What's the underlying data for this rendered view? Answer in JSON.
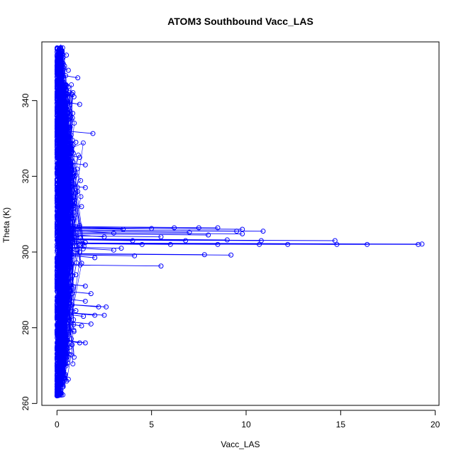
{
  "chart_data": {
    "type": "scatter",
    "title": "ATOM3 Southbound Vacc_LAS",
    "xlabel": "Vacc_LAS",
    "ylabel": "Theta (K)",
    "xlim": [
      -0.8,
      20.2
    ],
    "ylim": [
      259.5,
      355.5
    ],
    "x_ticks": [
      0,
      5,
      10,
      15,
      20
    ],
    "y_ticks": [
      260,
      280,
      300,
      320,
      340
    ],
    "grid": false,
    "legend": "none",
    "marker": "open-circle",
    "line": true,
    "color": "#0000ff",
    "bulk": {
      "note_values": "dense column of points near Vacc_LAS = 0 to 1.5",
      "x_range": [
        0,
        1.5
      ],
      "y_range": [
        262,
        354
      ]
    },
    "series": [
      {
        "points": [
          [
            0.0,
            262.0
          ],
          [
            0.05,
            263.2
          ],
          [
            0.1,
            265.0
          ],
          [
            0.2,
            266.5
          ],
          [
            0.4,
            266.6
          ],
          [
            0.6,
            266.4
          ],
          [
            0.1,
            268.5
          ],
          [
            0.3,
            270.0
          ],
          [
            0.5,
            272.0
          ],
          [
            0.2,
            274.0
          ],
          [
            0.8,
            275.5
          ],
          [
            1.2,
            276.0
          ],
          [
            1.5,
            276.0
          ],
          [
            0.4,
            277.5
          ],
          [
            0.9,
            279.0
          ],
          [
            1.3,
            280.5
          ],
          [
            1.8,
            281.0
          ],
          [
            0.6,
            282.0
          ],
          [
            1.4,
            283.0
          ],
          [
            2.0,
            283.3
          ],
          [
            2.5,
            283.3
          ],
          [
            0.3,
            284.0
          ],
          [
            1.0,
            284.5
          ],
          [
            2.2,
            285.5
          ],
          [
            2.6,
            285.5
          ],
          [
            0.8,
            286.0
          ],
          [
            1.5,
            287.0
          ],
          [
            0.5,
            288.0
          ],
          [
            1.8,
            289.0
          ],
          [
            0.7,
            290.0
          ],
          [
            1.5,
            291.0
          ],
          [
            0.3,
            292.0
          ],
          [
            1.0,
            294.0
          ],
          [
            5.5,
            296.3
          ],
          [
            0.5,
            297.0
          ],
          [
            2.0,
            298.5
          ],
          [
            4.1,
            299.0
          ],
          [
            7.8,
            299.3
          ],
          [
            9.2,
            299.2
          ],
          [
            1.2,
            300.0
          ],
          [
            3.0,
            300.5
          ],
          [
            3.4,
            301.0
          ],
          [
            4.5,
            302.0
          ],
          [
            6.0,
            302.0
          ],
          [
            8.5,
            302.0
          ],
          [
            10.7,
            302.0
          ],
          [
            12.2,
            302.0
          ],
          [
            14.8,
            302.0
          ],
          [
            16.4,
            302.0
          ],
          [
            19.1,
            302.0
          ],
          [
            19.3,
            302.1
          ],
          [
            1.5,
            302.5
          ],
          [
            4.0,
            303.0
          ],
          [
            6.8,
            303.0
          ],
          [
            9.0,
            303.2
          ],
          [
            10.8,
            303.0
          ],
          [
            14.7,
            303.0
          ],
          [
            2.5,
            304.0
          ],
          [
            5.5,
            304.0
          ],
          [
            8.0,
            304.5
          ],
          [
            9.8,
            304.8
          ],
          [
            3.0,
            305.0
          ],
          [
            7.0,
            305.2
          ],
          [
            9.5,
            305.5
          ],
          [
            10.9,
            305.5
          ],
          [
            3.5,
            306.0
          ],
          [
            5.0,
            306.2
          ],
          [
            6.2,
            306.4
          ],
          [
            7.5,
            306.4
          ],
          [
            8.5,
            306.4
          ],
          [
            9.8,
            306.0
          ],
          [
            1.2,
            307.0
          ],
          [
            0.8,
            309.0
          ],
          [
            1.3,
            312.0
          ],
          [
            0.6,
            314.0
          ],
          [
            1.5,
            317.0
          ],
          [
            0.9,
            320.0
          ],
          [
            1.5,
            323.0
          ],
          [
            1.2,
            325.0
          ],
          [
            0.5,
            327.0
          ],
          [
            1.0,
            329.0
          ],
          [
            1.9,
            331.3
          ],
          [
            0.7,
            333.0
          ],
          [
            0.4,
            336.0
          ],
          [
            1.2,
            339.0
          ],
          [
            0.9,
            341.0
          ],
          [
            0.5,
            344.0
          ],
          [
            1.1,
            346.0
          ],
          [
            0.6,
            348.0
          ],
          [
            0.3,
            350.0
          ],
          [
            0.5,
            352.0
          ],
          [
            0.2,
            354.0
          ]
        ]
      }
    ]
  }
}
